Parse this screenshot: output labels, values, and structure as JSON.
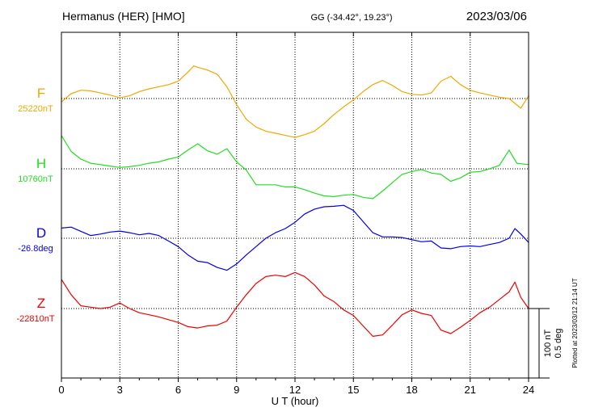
{
  "header": {
    "station": "Hermanus (HER)  [HMO]",
    "coords": "GG (-34.42°,  19.23°)",
    "date": "2023/03/06"
  },
  "footer": {
    "plotted_at": "Plotted at 2023/03/12 21:14 UT"
  },
  "chart_data": {
    "type": "line",
    "title": "Hermanus (HER)  [HMO]",
    "xlabel": "U T (hour)",
    "ylabel": "",
    "xlim": [
      0,
      24
    ],
    "x_ticks": [
      0,
      3,
      6,
      9,
      12,
      15,
      18,
      21,
      24
    ],
    "grid": true,
    "scale_bar": {
      "line1": "100 nT",
      "line2": "0.5 deg"
    },
    "series": [
      {
        "name": "F",
        "baseline_label": "25220nT",
        "color": "#f0a800",
        "unit": "nT",
        "points": [
          [
            0,
            25215
          ],
          [
            0.5,
            25227
          ],
          [
            1.0,
            25232
          ],
          [
            1.5,
            25231
          ],
          [
            2.0,
            25228
          ],
          [
            2.5,
            25225
          ],
          [
            3.0,
            25221
          ],
          [
            3.5,
            25224
          ],
          [
            4.0,
            25230
          ],
          [
            4.5,
            25234
          ],
          [
            5.0,
            25237
          ],
          [
            5.5,
            25240
          ],
          [
            6.0,
            25245
          ],
          [
            6.5,
            25258
          ],
          [
            6.8,
            25267
          ],
          [
            7.0,
            25265
          ],
          [
            7.5,
            25261
          ],
          [
            8.0,
            25255
          ],
          [
            8.5,
            25237
          ],
          [
            9.0,
            25211
          ],
          [
            9.5,
            25190
          ],
          [
            10.0,
            25179
          ],
          [
            10.5,
            25173
          ],
          [
            11.0,
            25170
          ],
          [
            11.5,
            25167
          ],
          [
            12.0,
            25164
          ],
          [
            12.5,
            25168
          ],
          [
            13.0,
            25173
          ],
          [
            13.5,
            25184
          ],
          [
            14.0,
            25197
          ],
          [
            14.5,
            25208
          ],
          [
            15.0,
            25218
          ],
          [
            15.5,
            25230
          ],
          [
            16.0,
            25240
          ],
          [
            16.5,
            25246
          ],
          [
            17.0,
            25239
          ],
          [
            17.5,
            25230
          ],
          [
            18.0,
            25226
          ],
          [
            18.5,
            25225
          ],
          [
            19.0,
            25228
          ],
          [
            19.5,
            25245
          ],
          [
            20.0,
            25252
          ],
          [
            20.5,
            25240
          ],
          [
            21.0,
            25232
          ],
          [
            21.5,
            25228
          ],
          [
            22.0,
            25225
          ],
          [
            22.5,
            25222
          ],
          [
            23.0,
            25220
          ],
          [
            23.3,
            25213
          ],
          [
            23.6,
            25206
          ],
          [
            24.0,
            25224
          ]
        ]
      },
      {
        "name": "H",
        "baseline_label": "10760nT",
        "color": "#22dd22",
        "unit": "nT",
        "points": [
          [
            0,
            10808
          ],
          [
            0.5,
            10785
          ],
          [
            1.0,
            10774
          ],
          [
            1.5,
            10768
          ],
          [
            2.0,
            10766
          ],
          [
            2.5,
            10764
          ],
          [
            3.0,
            10762
          ],
          [
            3.5,
            10763
          ],
          [
            4.0,
            10765
          ],
          [
            4.5,
            10768
          ],
          [
            5.0,
            10770
          ],
          [
            5.5,
            10774
          ],
          [
            6.0,
            10777
          ],
          [
            6.5,
            10787
          ],
          [
            7.0,
            10796
          ],
          [
            7.5,
            10786
          ],
          [
            8.0,
            10781
          ],
          [
            8.5,
            10789
          ],
          [
            9.0,
            10770
          ],
          [
            9.5,
            10758
          ],
          [
            10.0,
            10737
          ],
          [
            10.5,
            10737
          ],
          [
            11.0,
            10737
          ],
          [
            11.5,
            10734
          ],
          [
            12.0,
            10734
          ],
          [
            12.5,
            10730
          ],
          [
            13.0,
            10725
          ],
          [
            13.5,
            10721
          ],
          [
            14.0,
            10720
          ],
          [
            14.5,
            10722
          ],
          [
            15.0,
            10723
          ],
          [
            15.5,
            10719
          ],
          [
            16.0,
            10717
          ],
          [
            16.5,
            10728
          ],
          [
            17.0,
            10740
          ],
          [
            17.5,
            10752
          ],
          [
            18.0,
            10756
          ],
          [
            18.5,
            10759
          ],
          [
            19.0,
            10754
          ],
          [
            19.5,
            10752
          ],
          [
            20.0,
            10742
          ],
          [
            20.5,
            10747
          ],
          [
            21.0,
            10755
          ],
          [
            21.5,
            10756
          ],
          [
            22.0,
            10760
          ],
          [
            22.5,
            10765
          ],
          [
            23.0,
            10787
          ],
          [
            23.4,
            10768
          ],
          [
            24.0,
            10766
          ]
        ]
      },
      {
        "name": "D",
        "baseline_label": "-26.8deg",
        "color": "#0000ee",
        "unit": "deg",
        "points": [
          [
            0,
            -26.727
          ],
          [
            0.5,
            -26.72
          ],
          [
            1.0,
            -26.75
          ],
          [
            1.5,
            -26.78
          ],
          [
            2.0,
            -26.77
          ],
          [
            2.5,
            -26.755
          ],
          [
            3.0,
            -26.748
          ],
          [
            3.5,
            -26.76
          ],
          [
            4.0,
            -26.775
          ],
          [
            4.5,
            -26.765
          ],
          [
            5.0,
            -26.78
          ],
          [
            5.5,
            -26.82
          ],
          [
            6.0,
            -26.86
          ],
          [
            6.5,
            -26.92
          ],
          [
            7.0,
            -26.965
          ],
          [
            7.5,
            -26.975
          ],
          [
            8.0,
            -27.01
          ],
          [
            8.5,
            -27.03
          ],
          [
            9.0,
            -26.985
          ],
          [
            9.5,
            -26.92
          ],
          [
            10.0,
            -26.86
          ],
          [
            10.5,
            -26.8
          ],
          [
            11.0,
            -26.76
          ],
          [
            11.5,
            -26.73
          ],
          [
            12.0,
            -26.685
          ],
          [
            12.5,
            -26.625
          ],
          [
            13.0,
            -26.59
          ],
          [
            13.5,
            -26.573
          ],
          [
            14.0,
            -26.57
          ],
          [
            14.5,
            -26.563
          ],
          [
            15.0,
            -26.6
          ],
          [
            15.5,
            -26.68
          ],
          [
            16.0,
            -26.76
          ],
          [
            16.5,
            -26.79
          ],
          [
            17.0,
            -26.79
          ],
          [
            17.5,
            -26.795
          ],
          [
            18.0,
            -26.81
          ],
          [
            18.5,
            -26.825
          ],
          [
            19.0,
            -26.82
          ],
          [
            19.5,
            -26.87
          ],
          [
            20.0,
            -26.875
          ],
          [
            20.5,
            -26.86
          ],
          [
            21.0,
            -26.855
          ],
          [
            21.5,
            -26.86
          ],
          [
            22.0,
            -26.845
          ],
          [
            22.5,
            -26.83
          ],
          [
            23.0,
            -26.8
          ],
          [
            23.3,
            -26.73
          ],
          [
            23.6,
            -26.77
          ],
          [
            24.0,
            -26.83
          ]
        ]
      },
      {
        "name": "Z",
        "baseline_label": "-22810nT",
        "color": "#ee0000",
        "unit": "nT",
        "points": [
          [
            0,
            -22768
          ],
          [
            0.5,
            -22790
          ],
          [
            1.0,
            -22806
          ],
          [
            1.5,
            -22808
          ],
          [
            2.0,
            -22810
          ],
          [
            2.5,
            -22808
          ],
          [
            3.0,
            -22802
          ],
          [
            3.5,
            -22810
          ],
          [
            4.0,
            -22816
          ],
          [
            4.5,
            -22819
          ],
          [
            5.0,
            -22822
          ],
          [
            5.5,
            -22826
          ],
          [
            6.0,
            -22830
          ],
          [
            6.5,
            -22836
          ],
          [
            7.0,
            -22838
          ],
          [
            7.5,
            -22835
          ],
          [
            8.0,
            -22834
          ],
          [
            8.5,
            -22828
          ],
          [
            9.0,
            -22808
          ],
          [
            9.5,
            -22790
          ],
          [
            10.0,
            -22774
          ],
          [
            10.5,
            -22764
          ],
          [
            11.0,
            -22762
          ],
          [
            11.5,
            -22764
          ],
          [
            12.0,
            -22758
          ],
          [
            12.5,
            -22764
          ],
          [
            13.0,
            -22776
          ],
          [
            13.5,
            -22792
          ],
          [
            14.0,
            -22800
          ],
          [
            14.5,
            -22812
          ],
          [
            15.0,
            -22820
          ],
          [
            15.5,
            -22835
          ],
          [
            16.0,
            -22850
          ],
          [
            16.5,
            -22848
          ],
          [
            17.0,
            -22834
          ],
          [
            17.5,
            -22819
          ],
          [
            18.0,
            -22812
          ],
          [
            18.5,
            -22817
          ],
          [
            19.0,
            -22820
          ],
          [
            19.5,
            -22841
          ],
          [
            20.0,
            -22846
          ],
          [
            20.5,
            -22837
          ],
          [
            21.0,
            -22827
          ],
          [
            21.5,
            -22816
          ],
          [
            22.0,
            -22808
          ],
          [
            22.5,
            -22797
          ],
          [
            23.0,
            -22786
          ],
          [
            23.3,
            -22772
          ],
          [
            23.6,
            -22794
          ],
          [
            24.0,
            -22810
          ]
        ]
      }
    ]
  }
}
